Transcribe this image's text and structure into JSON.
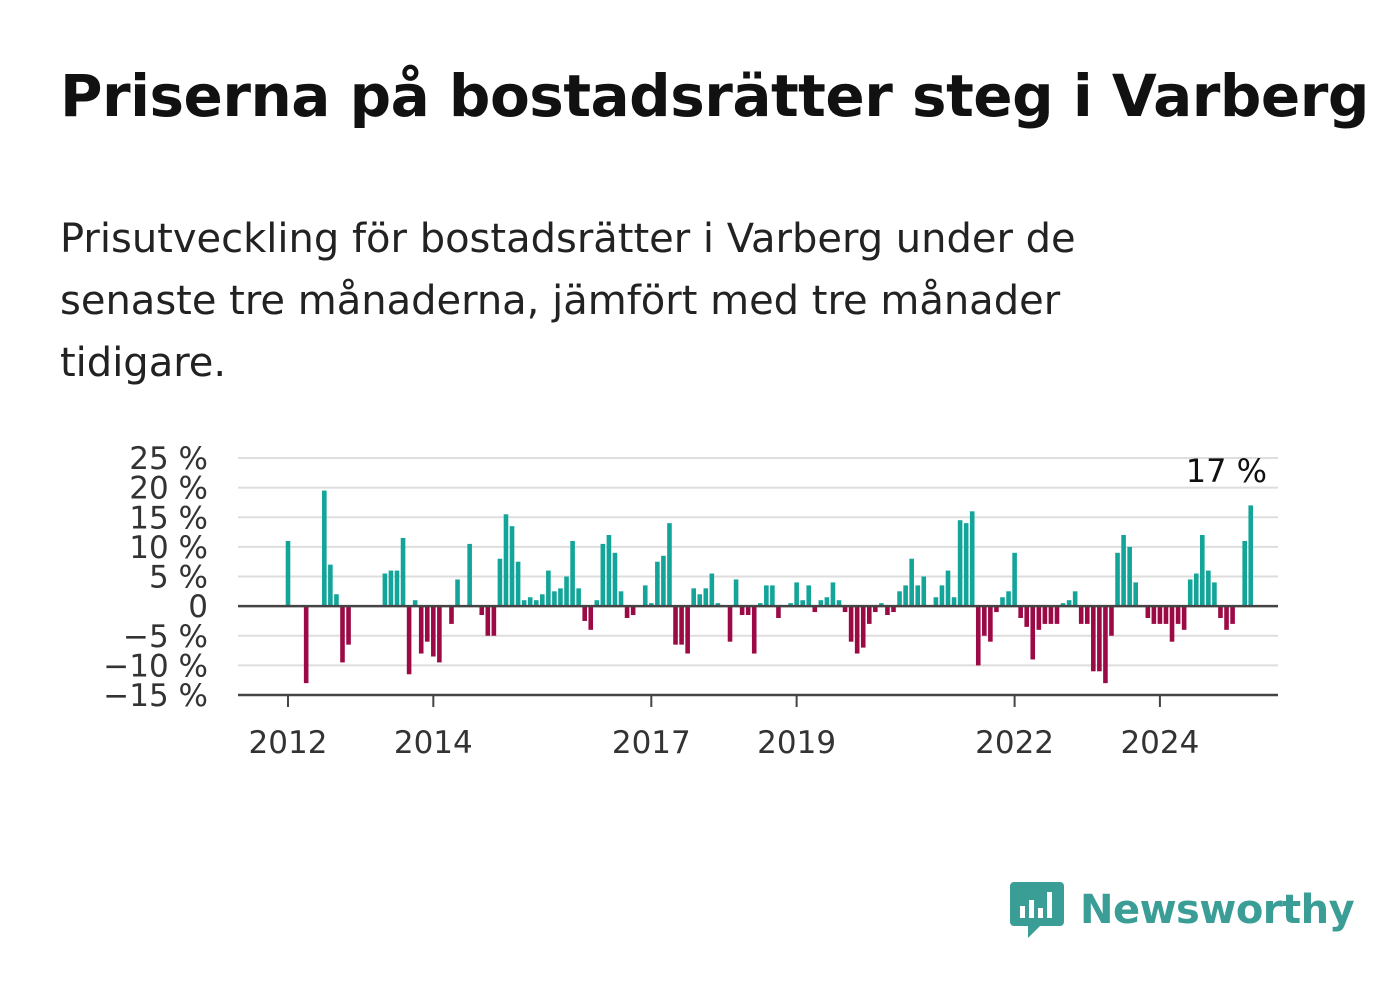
{
  "title": "Priserna på bostadsrätter steg i Varberg",
  "subtitle": "Prisutveckling för bostadsrätter i Varberg under de senaste tre månaderna, jämfört med tre månader tidigare.",
  "brand": "Newsworthy",
  "colors": {
    "positive": "#13a59a",
    "negative": "#9c0a46",
    "brand": "#3a9d96"
  },
  "chart_data": {
    "type": "bar",
    "ylim": [
      -15,
      25
    ],
    "yticks": [
      25,
      20,
      15,
      10,
      5,
      0,
      -5,
      -10,
      -15
    ],
    "ytick_labels": [
      "25 %",
      "20 %",
      "15 %",
      "10 %",
      "5 %",
      "0",
      "−5 %",
      "−10 %",
      "−15 %"
    ],
    "xticks": [
      "2012",
      "2014",
      "2017",
      "2019",
      "2022",
      "2024"
    ],
    "grid": true,
    "annotation": "17 %",
    "first_month": "2012-01",
    "values": [
      11,
      0,
      0,
      -13,
      0,
      0,
      19.5,
      7,
      2,
      -9.5,
      -6.5,
      0,
      0,
      0,
      0,
      0,
      5.5,
      6,
      6,
      11.5,
      -11.5,
      1,
      -8,
      -6,
      -8.5,
      -9.5,
      0,
      -3,
      4.5,
      0,
      10.5,
      0,
      -1.5,
      -5,
      -5,
      8,
      15.5,
      13.5,
      7.5,
      1,
      1.5,
      1,
      2,
      6,
      2.5,
      3,
      5,
      11,
      3,
      -2.5,
      -4,
      1,
      10.5,
      12,
      9,
      2.5,
      -2,
      -1.5,
      0,
      3.5,
      0.5,
      7.5,
      8.5,
      14,
      -6.5,
      -6.5,
      -8,
      3,
      2,
      3,
      5.5,
      0.5,
      0,
      -6,
      4.5,
      -1.5,
      -1.5,
      -8,
      0.5,
      3.5,
      3.5,
      -2,
      0,
      0.5,
      4,
      1,
      3.5,
      -1,
      1,
      1.5,
      4,
      1,
      -1,
      -6,
      -8,
      -7,
      -3,
      -1,
      0.5,
      -1.5,
      -1,
      2.5,
      3.5,
      8,
      3.5,
      5,
      0,
      1.5,
      3.5,
      6,
      1.5,
      14.5,
      14,
      16,
      -10,
      -5,
      -6,
      -1,
      1.5,
      2.5,
      9,
      -2,
      -3.5,
      -9,
      -4,
      -3,
      -3,
      -3,
      0.5,
      1,
      2.5,
      -3,
      -3,
      -11,
      -11,
      -13,
      -5,
      9,
      12,
      10,
      4,
      0,
      -2,
      -3,
      -3,
      -3,
      -6,
      -3,
      -4,
      4.5,
      5.5,
      12,
      6,
      4,
      -2,
      -4,
      -3,
      0,
      11,
      17
    ]
  }
}
